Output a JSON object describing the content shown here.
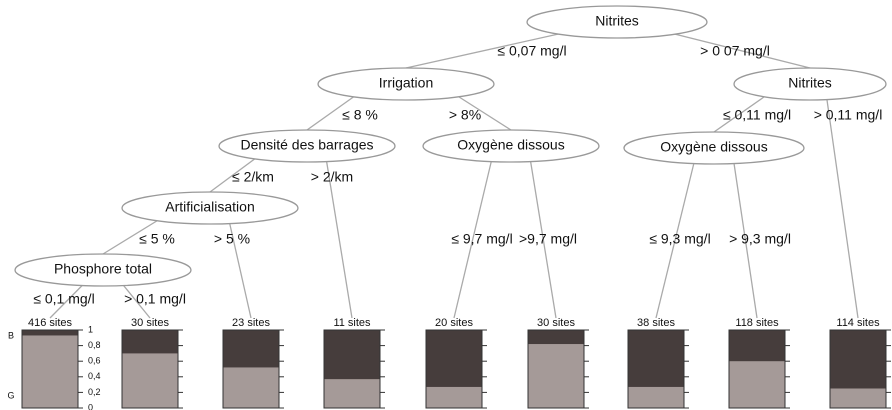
{
  "nodes": [
    {
      "label": "Nitrites"
    },
    {
      "label": "Irrigation"
    },
    {
      "label": "Nitrites"
    },
    {
      "label": "Densité des barrages"
    },
    {
      "label": "Oxygène dissous"
    },
    {
      "label": "Oxygène dissous"
    },
    {
      "label": "Artificialisation"
    },
    {
      "label": "Phosphore total"
    }
  ],
  "edge_labels": [
    "≤ 0,07 mg/l",
    "> 0 07 mg/l",
    "≤ 8 %",
    "> 8%",
    "≤ 0,11 mg/l",
    "> 0,11 mg/l",
    "≤ 2/km",
    "> 2/km",
    "≤ 5 %",
    "> 5 %",
    "≤ 0,1 mg/l",
    "> 0,1 mg/l",
    "≤ 9,7 mg/l",
    ">9,7 mg/l",
    "≤ 9,3 mg/l",
    "> 9,3 mg/l"
  ],
  "leaves": [
    {
      "label": "416 sites",
      "value": 0.93
    },
    {
      "label": "30 sites",
      "value": 0.7
    },
    {
      "label": "23 sites",
      "value": 0.52
    },
    {
      "label": "11 sites",
      "value": 0.37
    },
    {
      "label": "20 sites",
      "value": 0.27
    },
    {
      "label": "30 sites",
      "value": 0.82
    },
    {
      "label": "38 sites",
      "value": 0.27
    },
    {
      "label": "118 sites",
      "value": 0.6
    },
    {
      "label": "114 sites",
      "value": 0.25
    }
  ],
  "bar_axis": {
    "ylim": [
      0,
      1
    ],
    "yticks": [
      0,
      {
        "value": 0.2,
        "label": "0,2"
      },
      {
        "value": 0.4,
        "label": "0,4"
      },
      {
        "value": 0.6,
        "label": "0,6"
      },
      {
        "value": 0.8,
        "label": "0,8"
      },
      1
    ],
    "top_label": "B",
    "bottom_label": "G"
  }
}
